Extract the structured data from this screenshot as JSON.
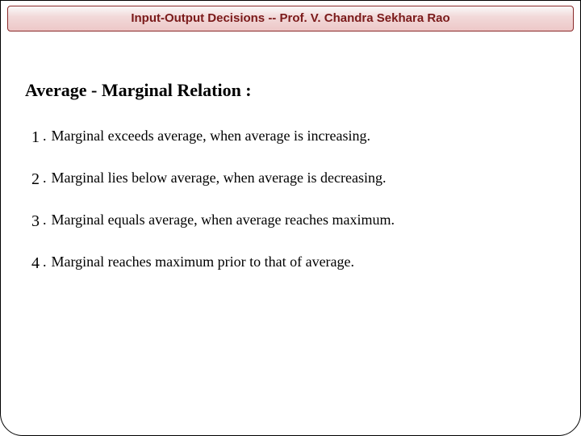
{
  "banner": {
    "title": "Input-Output Decisions -- Prof. V. Chandra Sekhara Rao",
    "bg_gradient_top": "#fafafa",
    "bg_gradient_mid": "#f2dada",
    "bg_gradient_bottom": "#edc7c7",
    "border_color": "#8a2a2a",
    "text_color": "#7a1a1a",
    "font_family": "Verdana, Geneva, sans-serif",
    "font_size_pt": 11,
    "font_weight": "bold"
  },
  "heading": {
    "text": "Average - Marginal Relation :",
    "font_family": "Georgia, serif",
    "font_size_pt": 17,
    "font_weight": "bold",
    "color": "#000000"
  },
  "points": [
    {
      "num": "1",
      "text": "Marginal exceeds average, when average is increasing."
    },
    {
      "num": "2",
      "text": "Marginal lies below average, when average is decreasing."
    },
    {
      "num": "3",
      "text": "Marginal equals average, when average reaches maximum."
    },
    {
      "num": "4",
      "text": "Marginal reaches maximum prior to that of average."
    }
  ],
  "frame": {
    "border_color": "#000000",
    "border_radius_bottom": 28,
    "background": "#ffffff"
  },
  "body_text": {
    "font_family": "Georgia, serif",
    "font_size_pt": 14,
    "color": "#000000"
  }
}
